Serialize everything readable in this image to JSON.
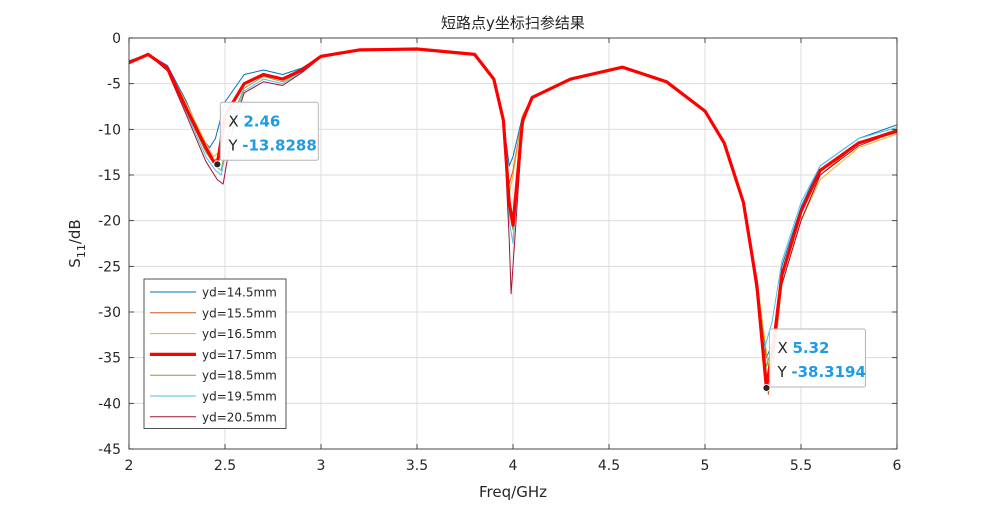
{
  "chart_data": {
    "type": "line",
    "title": "短路点y坐标扫参结果",
    "xlabel": "Freq/GHz",
    "ylabel_main": "S",
    "ylabel_sub": "11",
    "ylabel_suffix": "/dB",
    "xlim": [
      2,
      6
    ],
    "ylim": [
      -45,
      0
    ],
    "xticks": [
      2,
      2.5,
      3,
      3.5,
      4,
      4.5,
      5,
      5.5,
      6
    ],
    "xtick_labels": [
      "2",
      "2.5",
      "3",
      "3.5",
      "4",
      "4.5",
      "5",
      "5.5",
      "6"
    ],
    "yticks": [
      0,
      -5,
      -10,
      -15,
      -20,
      -25,
      -30,
      -35,
      -40,
      -45
    ],
    "ytick_labels": [
      "0",
      "-5",
      "-10",
      "-15",
      "-20",
      "-25",
      "-30",
      "-35",
      "-40",
      "-45"
    ],
    "grid": true,
    "legend_position": "bottom-left",
    "series": [
      {
        "name": "yd=14.5mm",
        "color": "#0072BD",
        "width": 1,
        "x": [
          2.0,
          2.1,
          2.2,
          2.3,
          2.38,
          2.42,
          2.45,
          2.5,
          2.6,
          2.7,
          2.8,
          2.9,
          3.0,
          3.2,
          3.5,
          3.8,
          3.9,
          3.95,
          3.98,
          4.0,
          4.05,
          4.1,
          4.3,
          4.57,
          4.8,
          5.0,
          5.1,
          5.2,
          5.27,
          5.32,
          5.36,
          5.4,
          5.5,
          5.6,
          5.8,
          6.0
        ],
        "y": [
          -2.5,
          -1.8,
          -3.0,
          -7.0,
          -11.0,
          -12.0,
          -11.0,
          -7.0,
          -4.0,
          -3.5,
          -4.0,
          -3.3,
          -2.0,
          -1.3,
          -1.2,
          -1.8,
          -4.5,
          -9.0,
          -14.0,
          -13.0,
          -8.5,
          -6.5,
          -4.5,
          -3.2,
          -4.8,
          -8.0,
          -11.5,
          -18.0,
          -27.0,
          -35.0,
          -33.0,
          -25.0,
          -18.5,
          -14.0,
          -11.0,
          -9.5
        ]
      },
      {
        "name": "yd=15.5mm",
        "color": "#D95319",
        "width": 1,
        "x": [
          2.0,
          2.1,
          2.2,
          2.3,
          2.4,
          2.44,
          2.47,
          2.52,
          2.6,
          2.7,
          2.8,
          2.9,
          3.0,
          3.2,
          3.5,
          3.8,
          3.9,
          3.95,
          3.98,
          4.0,
          4.05,
          4.1,
          4.3,
          4.57,
          4.8,
          5.0,
          5.1,
          5.2,
          5.28,
          5.33,
          5.36,
          5.4,
          5.5,
          5.6,
          5.8,
          6.0
        ],
        "y": [
          -2.6,
          -1.8,
          -3.2,
          -7.5,
          -12.0,
          -13.5,
          -13.0,
          -8.0,
          -5.0,
          -4.0,
          -4.5,
          -3.5,
          -2.0,
          -1.3,
          -1.2,
          -1.8,
          -4.5,
          -9.5,
          -16.0,
          -14.5,
          -8.5,
          -6.5,
          -4.5,
          -3.2,
          -4.8,
          -8.0,
          -11.5,
          -18.0,
          -28.0,
          -39.0,
          -35.0,
          -27.0,
          -20.0,
          -15.0,
          -11.5,
          -10.0
        ]
      },
      {
        "name": "yd=16.5mm",
        "color": "#EDB120",
        "width": 1,
        "x": [
          2.0,
          2.1,
          2.2,
          2.3,
          2.4,
          2.44,
          2.47,
          2.52,
          2.6,
          2.7,
          2.8,
          2.9,
          3.0,
          3.2,
          3.5,
          3.8,
          3.9,
          3.95,
          3.98,
          4.0,
          4.05,
          4.1,
          4.3,
          4.57,
          4.8,
          5.0,
          5.1,
          5.2,
          5.28,
          5.33,
          5.36,
          5.4,
          5.5,
          5.6,
          5.8,
          6.0
        ],
        "y": [
          -2.6,
          -1.8,
          -3.2,
          -7.2,
          -11.5,
          -13.0,
          -12.5,
          -8.0,
          -5.0,
          -4.0,
          -4.5,
          -3.5,
          -2.0,
          -1.3,
          -1.2,
          -1.8,
          -4.5,
          -9.5,
          -17.0,
          -15.0,
          -8.5,
          -6.5,
          -4.5,
          -3.2,
          -4.8,
          -8.0,
          -11.5,
          -18.0,
          -28.0,
          -36.0,
          -34.0,
          -27.0,
          -20.0,
          -15.5,
          -12.0,
          -10.5
        ]
      },
      {
        "name": "yd=17.5mm",
        "color": "#FF0000",
        "width": 3.2,
        "x": [
          2.0,
          2.1,
          2.2,
          2.3,
          2.4,
          2.44,
          2.46,
          2.5,
          2.6,
          2.7,
          2.8,
          2.9,
          3.0,
          3.2,
          3.5,
          3.8,
          3.9,
          3.95,
          3.98,
          4.0,
          4.05,
          4.1,
          4.3,
          4.57,
          4.8,
          5.0,
          5.1,
          5.2,
          5.27,
          5.32,
          5.36,
          5.4,
          5.5,
          5.6,
          5.8,
          6.0
        ],
        "y": [
          -2.7,
          -1.8,
          -3.3,
          -7.8,
          -12.0,
          -13.5,
          -13.8288,
          -8.5,
          -5.0,
          -4.0,
          -4.5,
          -3.5,
          -2.0,
          -1.3,
          -1.2,
          -1.8,
          -4.5,
          -9.0,
          -18.0,
          -20.5,
          -9.0,
          -6.5,
          -4.5,
          -3.2,
          -4.8,
          -8.0,
          -11.5,
          -18.0,
          -27.0,
          -38.3194,
          -33.0,
          -26.0,
          -19.0,
          -14.5,
          -11.5,
          -10.2
        ]
      },
      {
        "name": "yd=18.5mm",
        "color": "#77AC30",
        "width": 1,
        "x": [
          2.0,
          2.1,
          2.2,
          2.3,
          2.4,
          2.45,
          2.48,
          2.53,
          2.6,
          2.7,
          2.8,
          2.9,
          3.0,
          3.2,
          3.5,
          3.8,
          3.9,
          3.95,
          3.98,
          4.0,
          4.05,
          4.1,
          4.3,
          4.57,
          4.8,
          5.0,
          5.1,
          5.2,
          5.27,
          5.32,
          5.36,
          5.4,
          5.5,
          5.6,
          5.8,
          6.0
        ],
        "y": [
          -2.7,
          -1.8,
          -3.4,
          -8.0,
          -12.5,
          -14.0,
          -14.5,
          -9.0,
          -5.5,
          -4.2,
          -4.8,
          -3.6,
          -2.0,
          -1.3,
          -1.2,
          -1.8,
          -4.5,
          -9.0,
          -19.0,
          -21.0,
          -9.0,
          -6.5,
          -4.5,
          -3.2,
          -4.8,
          -8.0,
          -11.5,
          -18.0,
          -27.0,
          -36.0,
          -33.0,
          -26.0,
          -19.0,
          -14.5,
          -11.5,
          -10.0
        ]
      },
      {
        "name": "yd=19.5mm",
        "color": "#4DBEEE",
        "width": 1,
        "x": [
          2.0,
          2.1,
          2.2,
          2.3,
          2.4,
          2.45,
          2.48,
          2.53,
          2.6,
          2.7,
          2.8,
          2.9,
          3.0,
          3.2,
          3.5,
          3.8,
          3.9,
          3.95,
          3.98,
          4.0,
          4.05,
          4.1,
          4.3,
          4.57,
          4.8,
          5.0,
          5.1,
          5.2,
          5.26,
          5.31,
          5.35,
          5.4,
          5.5,
          5.6,
          5.8,
          6.0
        ],
        "y": [
          -2.8,
          -1.8,
          -3.5,
          -8.2,
          -13.0,
          -14.5,
          -15.0,
          -9.5,
          -5.8,
          -4.5,
          -5.0,
          -3.7,
          -2.1,
          -1.3,
          -1.2,
          -1.8,
          -4.5,
          -9.0,
          -20.0,
          -22.5,
          -9.0,
          -6.5,
          -4.5,
          -3.2,
          -4.8,
          -8.0,
          -11.5,
          -18.0,
          -26.0,
          -34.0,
          -31.0,
          -24.5,
          -18.0,
          -14.0,
          -11.0,
          -9.8
        ]
      },
      {
        "name": "yd=20.5mm",
        "color": "#A2142F",
        "width": 1,
        "x": [
          2.0,
          2.1,
          2.2,
          2.3,
          2.4,
          2.46,
          2.49,
          2.54,
          2.6,
          2.7,
          2.8,
          2.9,
          3.0,
          3.2,
          3.5,
          3.8,
          3.9,
          3.95,
          3.98,
          3.99,
          4.05,
          4.1,
          4.3,
          4.57,
          4.8,
          5.0,
          5.1,
          5.2,
          5.27,
          5.32,
          5.35,
          5.4,
          5.5,
          5.6,
          5.8,
          6.0
        ],
        "y": [
          -2.8,
          -1.8,
          -3.6,
          -8.5,
          -13.5,
          -15.5,
          -16.0,
          -10.0,
          -6.0,
          -4.8,
          -5.2,
          -3.8,
          -2.1,
          -1.3,
          -1.2,
          -1.8,
          -4.5,
          -9.0,
          -22.0,
          -28.0,
          -9.5,
          -6.5,
          -4.5,
          -3.2,
          -4.8,
          -8.0,
          -11.5,
          -18.0,
          -28.0,
          -38.0,
          -34.0,
          -27.0,
          -20.0,
          -15.0,
          -11.8,
          -10.2
        ]
      }
    ],
    "datatips": [
      {
        "x_label": "X",
        "y_label": "Y",
        "x_text": "2.46",
        "y_text": "-13.8288",
        "x": 2.46,
        "y": -13.8288
      },
      {
        "x_label": "X",
        "y_label": "Y",
        "x_text": "5.32",
        "y_text": "-38.3194",
        "x": 5.32,
        "y": -38.3194
      }
    ]
  }
}
